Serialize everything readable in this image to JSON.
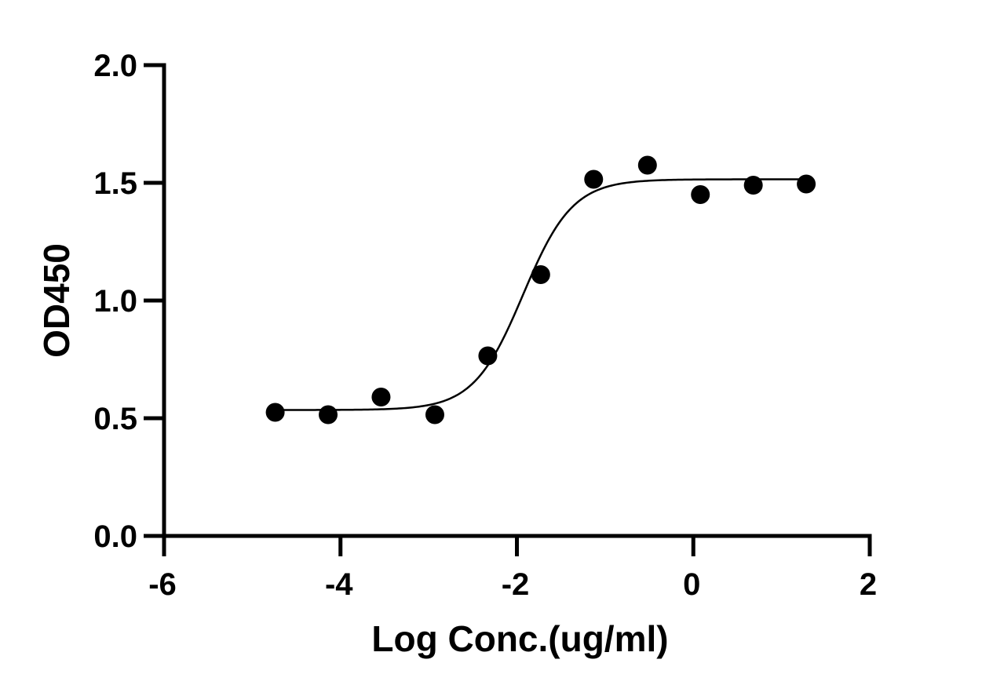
{
  "chart_data": {
    "type": "scatter",
    "title": "",
    "xlabel": "Log Conc.(ug/ml)",
    "ylabel": "OD450",
    "xlim": [
      -6,
      2
    ],
    "ylim": [
      0,
      2.0
    ],
    "x_ticks": [
      -6,
      -4,
      -2,
      0,
      2
    ],
    "x_tick_labels": [
      "-6",
      "-4",
      "-2",
      "0",
      "2"
    ],
    "y_ticks": [
      0,
      0.5,
      1.0,
      1.5,
      2.0
    ],
    "y_tick_labels": [
      "0.0",
      "0.5",
      "1.0",
      "1.5",
      "2.0"
    ],
    "grid": false,
    "legend": "none",
    "series": [
      {
        "marker": "circle",
        "color": "#000000",
        "points": [
          {
            "x": -4.74,
            "y": 0.525
          },
          {
            "x": -4.14,
            "y": 0.515
          },
          {
            "x": -3.54,
            "y": 0.59
          },
          {
            "x": -2.93,
            "y": 0.515
          },
          {
            "x": -2.33,
            "y": 0.765
          },
          {
            "x": -1.73,
            "y": 1.11
          },
          {
            "x": -1.13,
            "y": 1.515
          },
          {
            "x": -0.52,
            "y": 1.575
          },
          {
            "x": 0.08,
            "y": 1.45
          },
          {
            "x": 0.68,
            "y": 1.49
          },
          {
            "x": 1.28,
            "y": 1.495
          }
        ]
      }
    ],
    "fit_curve": {
      "model": "4PL",
      "bottom": 0.535,
      "top": 1.515,
      "logEC50": -1.93,
      "hill_slope": 1.55,
      "x_range": [
        -4.74,
        1.28
      ],
      "color": "#000000"
    }
  }
}
